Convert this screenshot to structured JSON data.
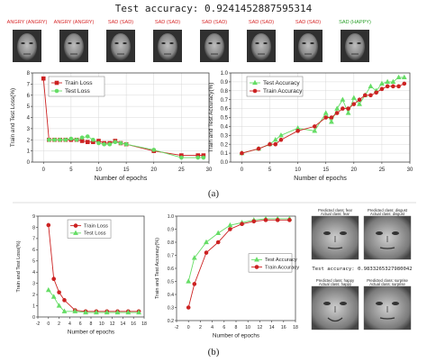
{
  "figure": {
    "top_title": "Test accuracy: 0.9241452887595314",
    "label_a": "(a)",
    "label_b": "(b)",
    "face_labels": [
      {
        "text": "ANGRY (ANGRY)",
        "color": "#d62728"
      },
      {
        "text": "ANGRY (ANGRY)",
        "color": "#d62728"
      },
      {
        "text": "SAD (SAD)",
        "color": "#d62728"
      },
      {
        "text": "SAD (SAD)",
        "color": "#d62728"
      },
      {
        "text": "SAD (SAD)",
        "color": "#d62728"
      },
      {
        "text": "SAD (SAD)",
        "color": "#d62728"
      },
      {
        "text": "SAD (SAD)",
        "color": "#d62728"
      },
      {
        "text": "SAD (HAPPY)",
        "color": "#2ca02c"
      }
    ],
    "grid_panel": {
      "tiles": [
        {
          "line1": "Predicted class: fear",
          "line2": "Actual class: fear"
        },
        {
          "line1": "Predicted class: disgust",
          "line2": "Actual class: disgust"
        },
        {
          "line1": "Predicted class: happy",
          "line2": "Actual class: happy"
        },
        {
          "line1": "Predicted class: surprise",
          "line2": "Actual class: surprise"
        }
      ],
      "accuracy_text": "Test accuracy: 0.9833265327980042"
    }
  },
  "chart_data": [
    {
      "id": "a-loss",
      "type": "line",
      "xlabel": "Number of epochs",
      "ylabel": "Train and Test Loss(%)",
      "xlim": [
        -2,
        30
      ],
      "ylim": [
        0,
        8
      ],
      "xticks": [
        0,
        5,
        10,
        15,
        20,
        25,
        30
      ],
      "yticks": [
        0,
        1,
        2,
        3,
        4,
        5,
        6,
        7,
        8
      ],
      "grid": true,
      "legend_position": "top-left",
      "series": [
        {
          "name": "Train Loss",
          "color": "#cc2222",
          "marker": "square",
          "x": [
            0,
            1,
            2,
            3,
            4,
            5,
            6,
            7,
            8,
            9,
            10,
            11,
            12,
            13,
            14,
            15,
            20,
            25,
            28,
            29
          ],
          "y": [
            7.5,
            2.0,
            2.0,
            2.0,
            2.0,
            2.0,
            2.0,
            1.9,
            1.8,
            1.8,
            1.9,
            1.7,
            1.7,
            1.9,
            1.7,
            1.6,
            1.0,
            0.6,
            0.6,
            0.6
          ]
        },
        {
          "name": "Test Loss",
          "color": "#66dd66",
          "marker": "circle",
          "x": [
            1,
            2,
            3,
            4,
            5,
            6,
            7,
            8,
            9,
            10,
            11,
            12,
            13,
            14,
            15,
            20,
            25,
            28,
            29
          ],
          "y": [
            2.0,
            2.0,
            2.0,
            2.0,
            2.1,
            2.0,
            2.2,
            2.3,
            2.0,
            1.7,
            1.6,
            1.6,
            1.8,
            1.7,
            1.6,
            1.1,
            0.4,
            0.4,
            0.4
          ]
        }
      ]
    },
    {
      "id": "a-acc",
      "type": "line",
      "xlabel": "Number of epochs",
      "ylabel": "Train and Test Accuracy(%)",
      "xlim": [
        -2,
        30
      ],
      "ylim": [
        0,
        1.0
      ],
      "xticks": [
        0,
        5,
        10,
        15,
        20,
        25,
        30
      ],
      "yticks": [
        0.0,
        0.1,
        0.2,
        0.3,
        0.4,
        0.5,
        0.6,
        0.7,
        0.8,
        0.9,
        1.0
      ],
      "grid": true,
      "legend_position": "top-left",
      "series": [
        {
          "name": "Test Accuracy",
          "color": "#66dd66",
          "marker": "triangle",
          "x": [
            0,
            3,
            5,
            6,
            7,
            10,
            13,
            15,
            16,
            17,
            18,
            19,
            20,
            21,
            22,
            23,
            24,
            25,
            26,
            27,
            28,
            29
          ],
          "y": [
            0.1,
            0.15,
            0.2,
            0.25,
            0.3,
            0.38,
            0.35,
            0.55,
            0.45,
            0.6,
            0.7,
            0.55,
            0.72,
            0.65,
            0.75,
            0.85,
            0.8,
            0.88,
            0.9,
            0.9,
            0.95,
            0.95
          ]
        },
        {
          "name": "Train Accuracy",
          "color": "#cc2222",
          "marker": "circle",
          "x": [
            0,
            3,
            5,
            6,
            7,
            10,
            13,
            15,
            16,
            17,
            18,
            19,
            20,
            21,
            22,
            23,
            24,
            25,
            26,
            27,
            28,
            29
          ],
          "y": [
            0.1,
            0.15,
            0.2,
            0.2,
            0.25,
            0.35,
            0.4,
            0.5,
            0.5,
            0.55,
            0.6,
            0.6,
            0.65,
            0.7,
            0.75,
            0.75,
            0.78,
            0.82,
            0.85,
            0.85,
            0.85,
            0.88
          ]
        }
      ]
    },
    {
      "id": "b-loss",
      "type": "line",
      "xlabel": "Number of epochs",
      "ylabel": "Train and Test Loss(%)",
      "xlim": [
        -2,
        18
      ],
      "ylim": [
        0,
        9
      ],
      "xticks": [
        -2,
        0,
        2,
        4,
        6,
        8,
        10,
        12,
        14,
        16,
        18
      ],
      "yticks": [
        0,
        1,
        2,
        3,
        4,
        5,
        6,
        7,
        8,
        9
      ],
      "grid": false,
      "legend_position": "top-center",
      "series": [
        {
          "name": "Train Loss",
          "color": "#cc2222",
          "marker": "circle",
          "x": [
            0,
            1,
            2,
            3,
            5,
            7,
            9,
            11,
            13,
            15,
            17
          ],
          "y": [
            8.2,
            3.4,
            2.2,
            1.5,
            0.6,
            0.5,
            0.5,
            0.5,
            0.5,
            0.5,
            0.5
          ]
        },
        {
          "name": "Test Loss",
          "color": "#66dd66",
          "marker": "triangle",
          "x": [
            0,
            1,
            2,
            3,
            5,
            7,
            9,
            11,
            13,
            15,
            17
          ],
          "y": [
            2.4,
            1.8,
            1.0,
            0.5,
            0.5,
            0.4,
            0.4,
            0.4,
            0.4,
            0.4,
            0.4
          ]
        }
      ]
    },
    {
      "id": "b-acc",
      "type": "line",
      "xlabel": "Number of epochs",
      "ylabel": "Train and Test Accuracy(%)",
      "xlim": [
        -2,
        18
      ],
      "ylim": [
        0.2,
        1.0
      ],
      "xticks": [
        -2,
        0,
        2,
        4,
        6,
        8,
        10,
        12,
        14,
        16,
        18
      ],
      "yticks": [
        0.2,
        0.3,
        0.4,
        0.5,
        0.6,
        0.7,
        0.8,
        0.9,
        1.0
      ],
      "grid": false,
      "legend_position": "center-right",
      "series": [
        {
          "name": "Test Accuracy",
          "color": "#66dd66",
          "marker": "triangle",
          "x": [
            0,
            1,
            3,
            5,
            7,
            9,
            11,
            13,
            15,
            17
          ],
          "y": [
            0.5,
            0.68,
            0.8,
            0.87,
            0.93,
            0.95,
            0.97,
            0.98,
            0.98,
            0.98
          ]
        },
        {
          "name": "Train Accuracy",
          "color": "#cc2222",
          "marker": "circle",
          "x": [
            0,
            1,
            3,
            5,
            7,
            9,
            11,
            13,
            15,
            17
          ],
          "y": [
            0.3,
            0.48,
            0.72,
            0.8,
            0.9,
            0.94,
            0.96,
            0.97,
            0.97,
            0.97
          ]
        }
      ]
    }
  ]
}
